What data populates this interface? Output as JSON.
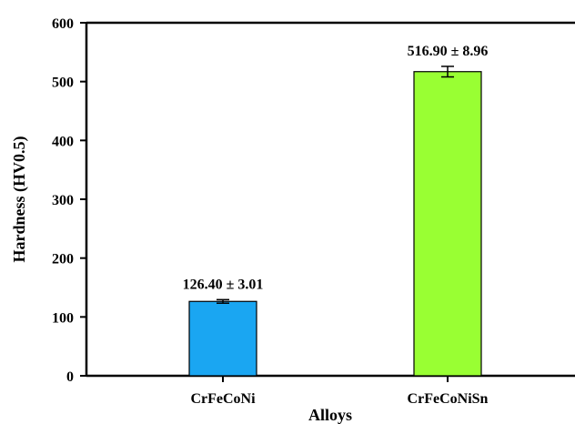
{
  "chart_data": {
    "type": "bar",
    "categories": [
      "CrFeCoNi",
      "CrFeCoNiSn"
    ],
    "values": [
      126.4,
      516.9
    ],
    "errors": [
      3.01,
      8.96
    ],
    "data_labels": [
      "126.40 ± 3.01",
      "516.90 ± 8.96"
    ],
    "colors": [
      "#1aa6f2",
      "#99ff33"
    ],
    "xlabel": "Alloys",
    "ylabel": "Hardness (HV0.5)",
    "ylim": [
      0,
      600
    ],
    "yticks": [
      0,
      100,
      200,
      300,
      400,
      500,
      600
    ],
    "grid": false,
    "legend": "none"
  }
}
